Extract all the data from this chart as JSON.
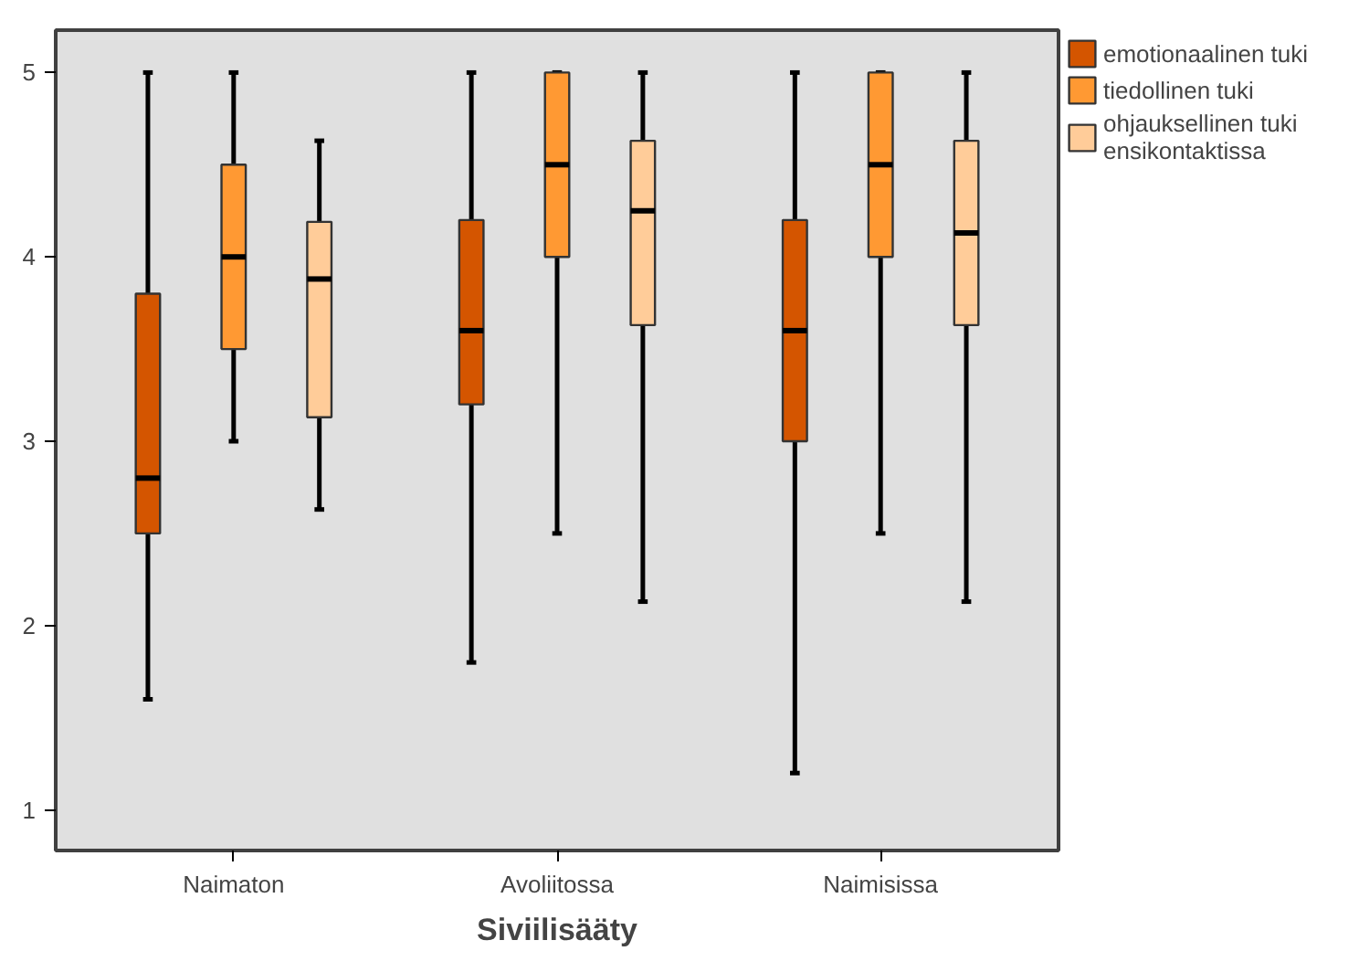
{
  "chart_data": {
    "type": "box",
    "xlabel": "Siviilisääty",
    "categories": [
      "Naimaton",
      "Avoliitossa",
      "Naimisissa"
    ],
    "ylim": [
      0.78,
      5.23
    ],
    "yticks": [
      1,
      2,
      3,
      4,
      5
    ],
    "grid": false,
    "legend": "top right",
    "series": [
      {
        "name": "emotionaalinen tuki",
        "color": "#d45500",
        "boxes": [
          {
            "low": 1.6,
            "q1": 2.5,
            "median": 2.8,
            "q3": 3.8,
            "high": 5
          },
          {
            "low": 1.8,
            "q1": 3.2,
            "median": 3.6,
            "q3": 4.2,
            "high": 5
          },
          {
            "low": 1.2,
            "q1": 3.0,
            "median": 3.6,
            "q3": 4.2,
            "high": 5
          }
        ]
      },
      {
        "name": "tiedollinen tuki",
        "color": "#ff9933",
        "boxes": [
          {
            "low": 3.0,
            "q1": 3.5,
            "median": 4.0,
            "q3": 4.5,
            "high": 5
          },
          {
            "low": 2.5,
            "q1": 4.0,
            "median": 4.5,
            "q3": 5,
            "high": 5
          },
          {
            "low": 2.5,
            "q1": 4.0,
            "median": 4.5,
            "q3": 5,
            "high": 5
          }
        ]
      },
      {
        "name": "ohjauksellinen tuki ensikontaktissa",
        "color": "#ffcc99",
        "boxes": [
          {
            "low": 2.63,
            "q1": 3.13,
            "median": 3.88,
            "q3": 4.19,
            "high": 4.63
          },
          {
            "low": 2.13,
            "q1": 3.63,
            "median": 4.25,
            "q3": 4.63,
            "high": 5
          },
          {
            "low": 2.13,
            "q1": 3.63,
            "median": 4.13,
            "q3": 4.63,
            "high": 5
          }
        ]
      }
    ]
  }
}
